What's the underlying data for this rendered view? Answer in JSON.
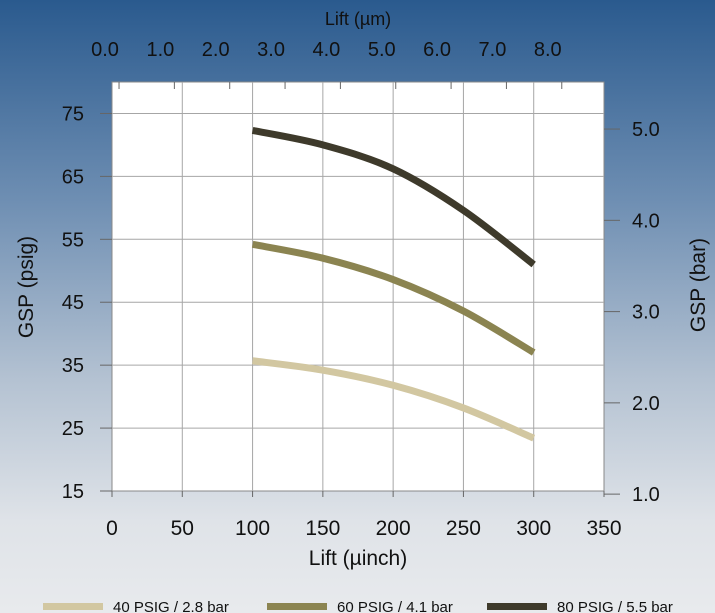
{
  "chart_data": {
    "type": "line",
    "x_axis_bottom": {
      "label": "Lift (µinch)",
      "ticks": [
        "0",
        "50",
        "100",
        "150",
        "200",
        "250",
        "300",
        "350"
      ],
      "range": [
        0,
        350
      ]
    },
    "x_axis_top": {
      "label": "Lift (µm)",
      "ticks": [
        "0.0",
        "1.0",
        "2.0",
        "3.0",
        "4.0",
        "5.0",
        "6.0",
        "7.0",
        "8.0"
      ]
    },
    "y_axis_left": {
      "label": "GSP (psig)",
      "ticks": [
        "15",
        "25",
        "35",
        "45",
        "55",
        "65",
        "75"
      ],
      "range": [
        15,
        80
      ]
    },
    "y_axis_right": {
      "label": "GSP (bar)",
      "ticks": [
        "1.0",
        "2.0",
        "3.0",
        "4.0",
        "5.0"
      ]
    },
    "grid": true,
    "legend_position": "bottom",
    "series": [
      {
        "name": "40 PSIG / 2.8 bar",
        "color": "#d2c7a1",
        "points": [
          [
            100,
            35.7
          ],
          [
            150,
            34.2
          ],
          [
            200,
            31.8
          ],
          [
            250,
            28.2
          ],
          [
            300,
            23.4
          ]
        ]
      },
      {
        "name": "60 PSIG / 4.1 bar",
        "color": "#8b8451",
        "points": [
          [
            100,
            54.2
          ],
          [
            150,
            52.0
          ],
          [
            200,
            48.6
          ],
          [
            250,
            43.6
          ],
          [
            300,
            37.0
          ]
        ]
      },
      {
        "name": "80 PSIG / 5.5 bar",
        "color": "#3e3a2b",
        "points": [
          [
            100,
            72.3
          ],
          [
            150,
            70.0
          ],
          [
            200,
            66.2
          ],
          [
            250,
            59.6
          ],
          [
            300,
            51.0
          ]
        ]
      }
    ]
  }
}
